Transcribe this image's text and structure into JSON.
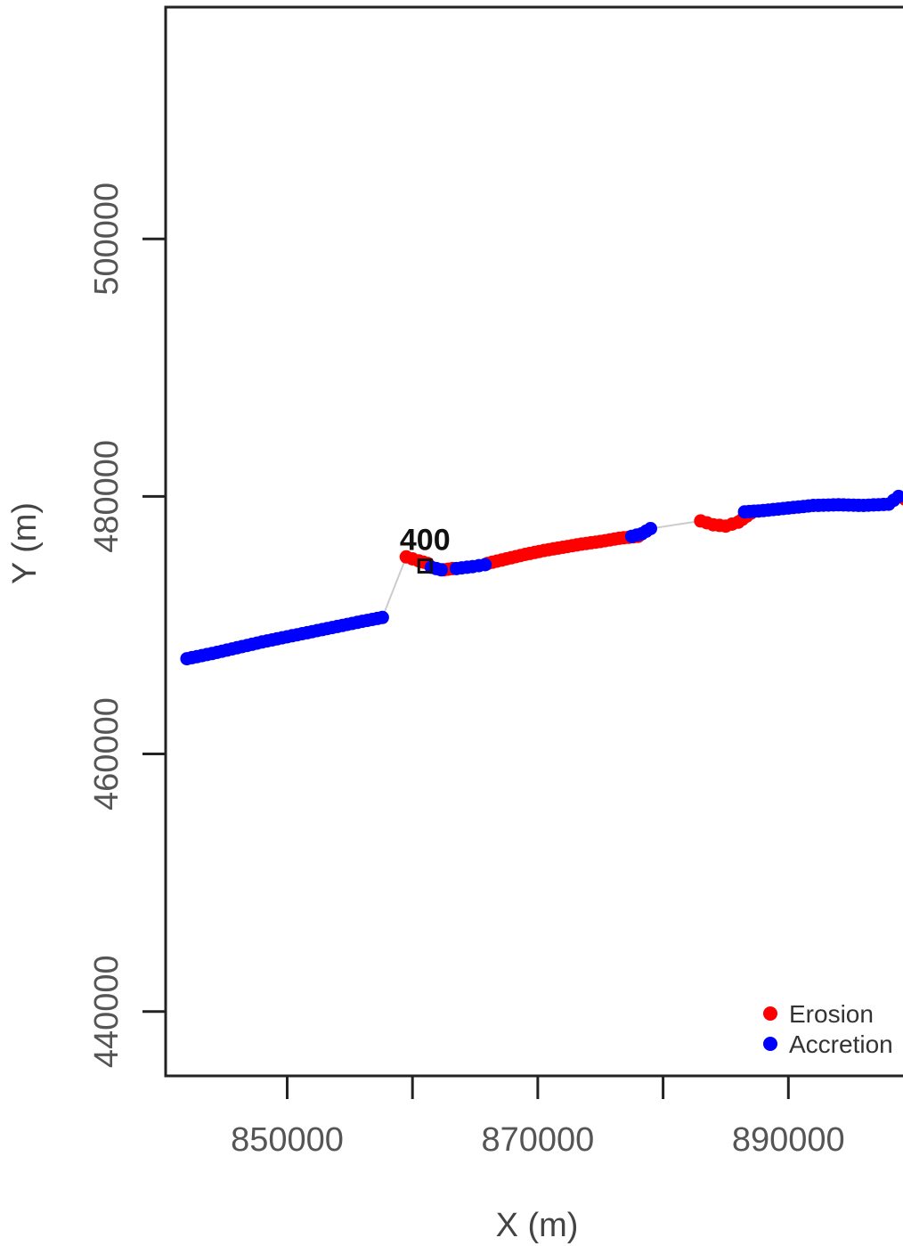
{
  "chart_data": {
    "type": "scatter",
    "title": "",
    "xlabel": "X (m)",
    "ylabel": "Y (m)",
    "xlim": [
      840300,
      900000
    ],
    "ylim": [
      435000,
      518000
    ],
    "x_ticks": [
      {
        "value": 850000,
        "label": "850000"
      },
      {
        "value": 860000,
        "label": ""
      },
      {
        "value": 870000,
        "label": "870000"
      },
      {
        "value": 880000,
        "label": ""
      },
      {
        "value": 890000,
        "label": "890000"
      },
      {
        "value": 900000,
        "label": ""
      }
    ],
    "y_ticks": [
      {
        "value": 440000,
        "label": "440000"
      },
      {
        "value": 460000,
        "label": "460000"
      },
      {
        "value": 480000,
        "label": "480000"
      },
      {
        "value": 500000,
        "label": "500000"
      }
    ],
    "grid": false,
    "legend_position": "bottom-right",
    "colors": {
      "erosion": "#ff0000",
      "accretion": "#0000ff",
      "shoreline": "#cccccc"
    },
    "series": [
      {
        "name": "Erosion",
        "color": "#ff0000",
        "segments": [
          {
            "x": [
              859500,
              860500,
              861200
            ],
            "y": [
              475300,
              475000,
              474800
            ]
          },
          {
            "x": [
              862500,
              863200
            ],
            "y": [
              474300,
              474400
            ]
          },
          {
            "x": [
              866000,
              867500,
              869000,
              870500,
              872000,
              873500,
              875000,
              876500,
              878000
            ],
            "y": [
              474800,
              475150,
              475500,
              475800,
              476050,
              476300,
              476500,
              476750,
              476900
            ]
          },
          {
            "x": [
              883000,
              884000,
              885000,
              886000,
              887000
            ],
            "y": [
              478100,
              477800,
              477700,
              478000,
              478700
            ]
          },
          {
            "x": [
              899300
            ],
            "y": [
              479800
            ]
          }
        ]
      },
      {
        "name": "Accretion",
        "color": "#0000ff",
        "segments": [
          {
            "x": [
              842000,
              844000,
              846000,
              848000,
              850000,
              852000,
              854000,
              856000,
              857600
            ],
            "y": [
              467400,
              467800,
              468250,
              468700,
              469100,
              469500,
              469900,
              470300,
              470600
            ]
          },
          {
            "x": [
              861500,
              862300
            ],
            "y": [
              474500,
              474300
            ]
          },
          {
            "x": [
              863500,
              864800,
              865800
            ],
            "y": [
              474400,
              474550,
              474700
            ]
          },
          {
            "x": [
              877500,
              878300,
              879000
            ],
            "y": [
              476900,
              477100,
              477500
            ]
          },
          {
            "x": [
              886500,
              888000,
              890000,
              892000,
              894000,
              896000,
              898000,
              898800
            ],
            "y": [
              478800,
              478900,
              479100,
              479300,
              479350,
              479300,
              479400,
              480000
            ]
          }
        ]
      }
    ],
    "annotations": [
      {
        "text": "400",
        "x": 861000,
        "y": 474600
      }
    ],
    "legend": [
      {
        "label": "Erosion",
        "color": "#ff0000"
      },
      {
        "label": "Accretion",
        "color": "#0000ff"
      }
    ]
  }
}
